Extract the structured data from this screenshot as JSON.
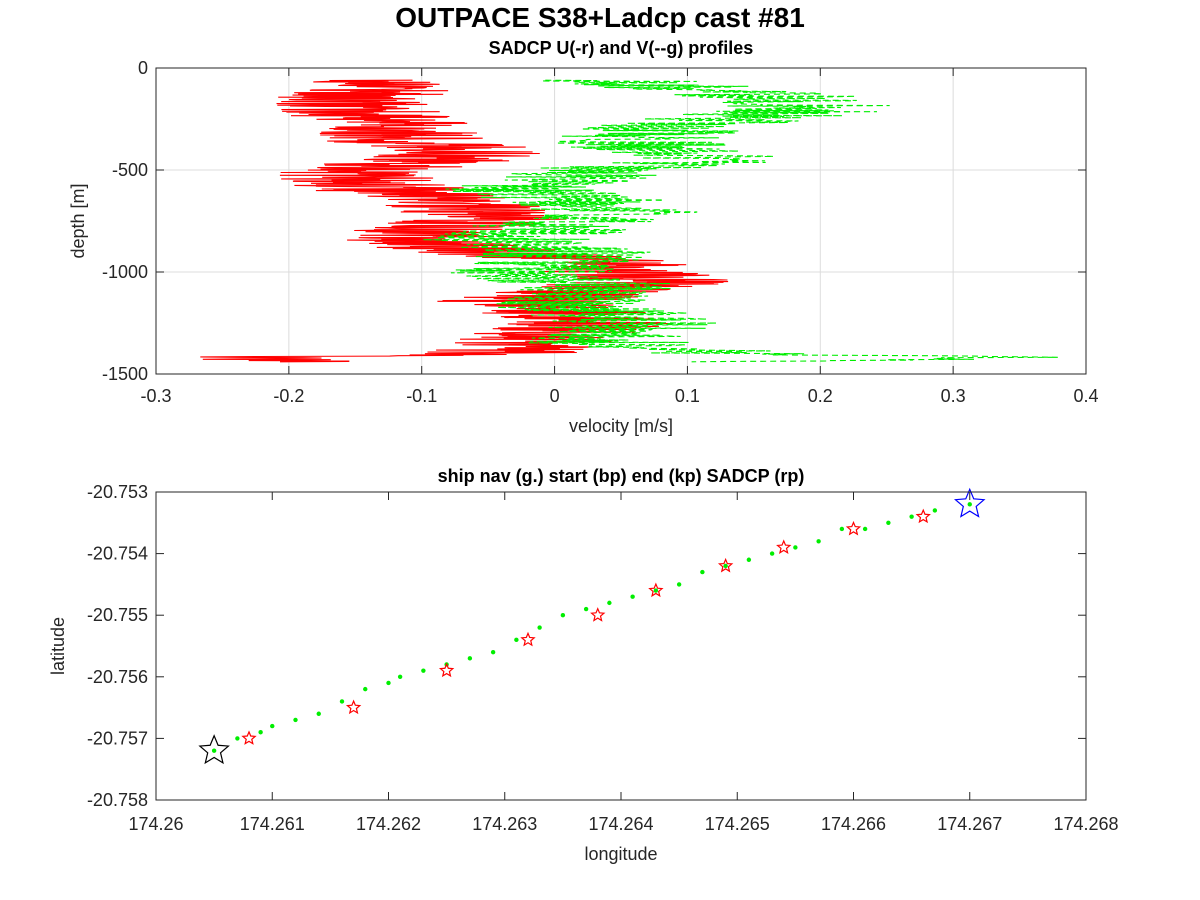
{
  "figure": {
    "title": "OUTPACE S38+Ladcp cast #81"
  },
  "chart_data": [
    {
      "type": "line",
      "title": "SADCP U(-r) and V(--g) profiles",
      "xlabel": "velocity [m/s]",
      "ylabel": "depth [m]",
      "xlim": [
        -0.3,
        0.4
      ],
      "ylim": [
        -1500,
        0
      ],
      "xticks": [
        -0.3,
        -0.2,
        -0.1,
        0,
        0.1,
        0.2,
        0.3,
        0.4
      ],
      "xtick_labels": [
        "-0.3",
        "-0.2",
        "-0.1",
        "0",
        "0.1",
        "0.2",
        "0.3",
        "0.4"
      ],
      "yticks": [
        0,
        -500,
        -1000,
        -1500
      ],
      "ytick_labels": [
        "0",
        "-500",
        "-1000",
        "-1500"
      ],
      "grid": true,
      "series": [
        {
          "color": "#ff0000",
          "style": "solid",
          "depth": [
            -60,
            -100,
            -150,
            -200,
            -250,
            -300,
            -350,
            -400,
            -450,
            -500,
            -550,
            -600,
            -650,
            -700,
            -750,
            -800,
            -850,
            -900,
            -950,
            -1000,
            -1050,
            -1100,
            -1150,
            -1200,
            -1250,
            -1300,
            -1350,
            -1400,
            -1420,
            -1440
          ],
          "values": [
            -0.13,
            -0.12,
            -0.16,
            -0.15,
            -0.13,
            -0.11,
            -0.12,
            -0.06,
            -0.09,
            -0.14,
            -0.15,
            -0.12,
            -0.08,
            -0.07,
            -0.05,
            -0.1,
            -0.11,
            -0.05,
            0.03,
            0.05,
            0.07,
            0.02,
            -0.03,
            0.01,
            0.03,
            0.0,
            -0.02,
            -0.05,
            -0.24,
            -0.15
          ]
        },
        {
          "color": "#00ee00",
          "style": "dashed",
          "depth": [
            -60,
            -100,
            -150,
            -200,
            -250,
            -300,
            -350,
            -400,
            -450,
            -500,
            -550,
            -600,
            -650,
            -700,
            -750,
            -800,
            -850,
            -900,
            -950,
            -1000,
            -1050,
            -1100,
            -1150,
            -1200,
            -1250,
            -1300,
            -1350,
            -1400,
            -1420,
            -1440
          ],
          "values": [
            0.05,
            0.1,
            0.18,
            0.2,
            0.13,
            0.08,
            0.06,
            0.07,
            0.12,
            0.03,
            0.0,
            -0.03,
            0.02,
            0.05,
            0.01,
            -0.01,
            -0.04,
            0.01,
            0.0,
            -0.02,
            0.02,
            0.04,
            0.0,
            0.04,
            0.06,
            0.05,
            0.04,
            0.12,
            0.35,
            0.14
          ]
        }
      ]
    },
    {
      "type": "scatter",
      "title": "ship nav (g.) start (bp) end (kp) SADCP (rp)",
      "xlabel": "longitude",
      "ylabel": "latitude",
      "xlim": [
        174.26,
        174.268
      ],
      "ylim": [
        -20.758,
        -20.753
      ],
      "xticks": [
        174.26,
        174.261,
        174.262,
        174.263,
        174.264,
        174.265,
        174.266,
        174.267,
        174.268
      ],
      "xtick_labels": [
        "174.26",
        "174.261",
        "174.262",
        "174.263",
        "174.264",
        "174.265",
        "174.266",
        "174.267",
        "174.268"
      ],
      "yticks": [
        -20.753,
        -20.754,
        -20.755,
        -20.756,
        -20.757,
        -20.758
      ],
      "ytick_labels": [
        "-20.753",
        "-20.754",
        "-20.755",
        "-20.756",
        "-20.757",
        "-20.758"
      ],
      "grid": false,
      "ship_nav": {
        "color": "#00ee00",
        "lon": [
          174.2605,
          174.2607,
          174.2609,
          174.261,
          174.2612,
          174.2614,
          174.2616,
          174.2618,
          174.262,
          174.2621,
          174.2623,
          174.2625,
          174.2627,
          174.2629,
          174.2631,
          174.2633,
          174.2635,
          174.2637,
          174.2639,
          174.2641,
          174.2643,
          174.2645,
          174.2647,
          174.2649,
          174.2651,
          174.2653,
          174.2655,
          174.2657,
          174.2659,
          174.2661,
          174.2663,
          174.2665,
          174.2667,
          174.267
        ],
        "lat": [
          -20.7572,
          -20.757,
          -20.7569,
          -20.7568,
          -20.7567,
          -20.7566,
          -20.7564,
          -20.7562,
          -20.7561,
          -20.756,
          -20.7559,
          -20.7558,
          -20.7557,
          -20.7556,
          -20.7554,
          -20.7552,
          -20.755,
          -20.7549,
          -20.7548,
          -20.7547,
          -20.7546,
          -20.7545,
          -20.7543,
          -20.7542,
          -20.7541,
          -20.754,
          -20.7539,
          -20.7538,
          -20.7536,
          -20.7536,
          -20.7535,
          -20.7534,
          -20.7533,
          -20.7532
        ]
      },
      "sadcp": {
        "color": "#ff0000",
        "lon": [
          174.2608,
          174.2617,
          174.2625,
          174.2632,
          174.2638,
          174.2643,
          174.2649,
          174.2654,
          174.266,
          174.2666
        ],
        "lat": [
          -20.757,
          -20.7565,
          -20.7559,
          -20.7554,
          -20.755,
          -20.7546,
          -20.7542,
          -20.7539,
          -20.7536,
          -20.7534
        ]
      },
      "start": {
        "color": "#0000ff",
        "lon": 174.267,
        "lat": -20.7532
      },
      "end": {
        "color": "#000000",
        "lon": 174.2605,
        "lat": -20.7572
      }
    }
  ]
}
